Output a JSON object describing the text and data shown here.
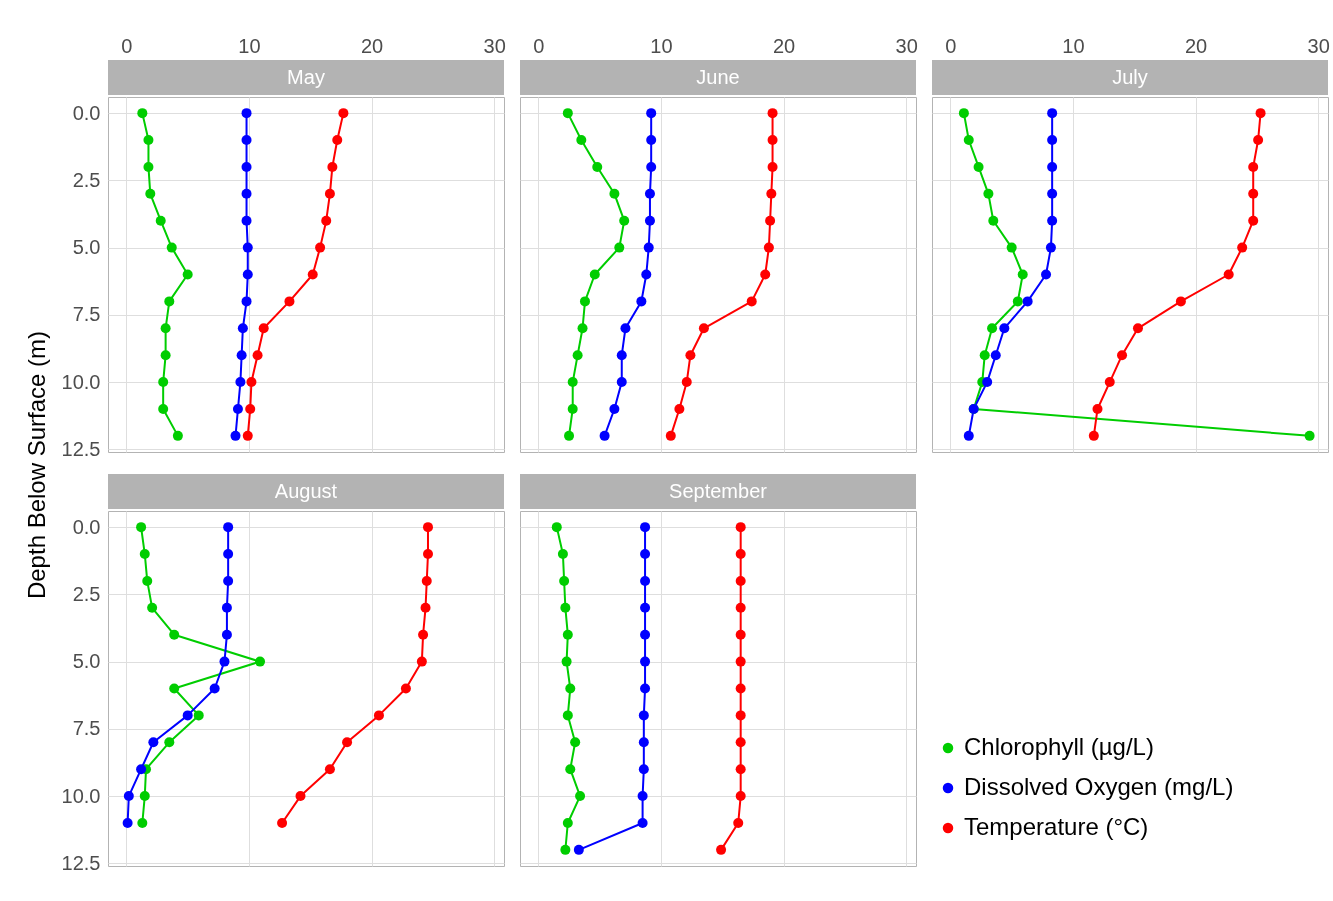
{
  "chart_data": [
    {
      "type": "line",
      "title": "May",
      "ylabel": "Depth Below Surface (m)",
      "xlim": [
        -1.5,
        30.8
      ],
      "ylim": [
        12.6,
        -0.6
      ],
      "xticks": [
        0,
        10,
        20,
        30
      ],
      "yticks": [
        {
          "value": 0,
          "label": "0.0"
        },
        {
          "value": 2.5,
          "label": "2.5"
        },
        {
          "value": 5,
          "label": "5.0"
        },
        {
          "value": 7.5,
          "label": "7.5"
        },
        {
          "value": 10,
          "label": "10.0"
        },
        {
          "value": 12.5,
          "label": "12.5"
        }
      ],
      "grid": true,
      "marker": "circle",
      "line_style": "solid",
      "series": [
        {
          "color": "#00cd00",
          "x": [
            1.3,
            1.8,
            1.8,
            1.95,
            2.8,
            3.7,
            5.0,
            3.5,
            3.2,
            3.2,
            3.0,
            3.0,
            4.2
          ],
          "values": [
            0,
            1,
            2,
            3,
            4,
            5,
            6,
            7,
            8,
            9,
            10,
            11,
            12
          ]
        },
        {
          "color": "#0000ff",
          "x": [
            9.8,
            9.8,
            9.8,
            9.8,
            9.8,
            9.9,
            9.9,
            9.8,
            9.5,
            9.4,
            9.3,
            9.1,
            8.9
          ],
          "values": [
            0,
            1,
            2,
            3,
            4,
            5,
            6,
            7,
            8,
            9,
            10,
            11,
            12
          ]
        },
        {
          "color": "#ff0000",
          "x": [
            17.7,
            17.2,
            16.8,
            16.6,
            16.3,
            15.8,
            15.2,
            13.3,
            11.2,
            10.7,
            10.2,
            10.1,
            9.9
          ],
          "values": [
            0,
            1,
            2,
            3,
            4,
            5,
            6,
            7,
            8,
            9,
            10,
            11,
            12
          ]
        }
      ]
    },
    {
      "type": "line",
      "title": "June",
      "tick_labels": "x",
      "xlim": [
        -1.5,
        30.8
      ],
      "ylim": [
        12.6,
        -0.6
      ],
      "xticks": [
        0,
        10,
        20,
        30
      ],
      "yticks": [
        0,
        2.5,
        5,
        7.5,
        10,
        12.5
      ],
      "grid": true,
      "marker": "circle",
      "line_style": "solid",
      "series": [
        {
          "color": "#00cd00",
          "x": [
            2.4,
            3.5,
            4.8,
            6.2,
            7.0,
            6.6,
            4.6,
            3.8,
            3.6,
            3.2,
            2.8,
            2.8,
            2.5
          ],
          "values": [
            0,
            1,
            2,
            3,
            4,
            5,
            6,
            7,
            8,
            9,
            10,
            11,
            12
          ]
        },
        {
          "color": "#0000ff",
          "x": [
            9.2,
            9.2,
            9.2,
            9.1,
            9.1,
            9.0,
            8.8,
            8.4,
            7.1,
            6.8,
            6.8,
            6.2,
            5.4
          ],
          "values": [
            0,
            1,
            2,
            3,
            4,
            5,
            6,
            7,
            8,
            9,
            10,
            11,
            12
          ]
        },
        {
          "color": "#ff0000",
          "x": [
            19.1,
            19.1,
            19.1,
            19.0,
            18.9,
            18.8,
            18.5,
            17.4,
            13.5,
            12.4,
            12.1,
            11.5,
            10.8
          ],
          "values": [
            0,
            1,
            2,
            3,
            4,
            5,
            6,
            7,
            8,
            9,
            10,
            11,
            12
          ]
        }
      ]
    },
    {
      "type": "line",
      "title": "July",
      "tick_labels": "x",
      "xlim": [
        -1.5,
        30.8
      ],
      "ylim": [
        12.6,
        -0.6
      ],
      "xticks": [
        0,
        10,
        20,
        30
      ],
      "yticks": [
        0,
        2.5,
        5,
        7.5,
        10,
        12.5
      ],
      "grid": true,
      "marker": "circle",
      "line_style": "solid",
      "series": [
        {
          "color": "#00cd00",
          "x": [
            1.1,
            1.5,
            2.3,
            3.1,
            3.5,
            5.0,
            5.9,
            5.5,
            3.4,
            2.8,
            2.6,
            1.9,
            29.3
          ],
          "values": [
            0,
            1,
            2,
            3,
            4,
            5,
            6,
            7,
            8,
            9,
            10,
            11,
            12
          ]
        },
        {
          "color": "#0000ff",
          "x": [
            8.3,
            8.3,
            8.3,
            8.3,
            8.3,
            8.2,
            7.8,
            6.3,
            4.4,
            3.7,
            3.0,
            1.9,
            1.5
          ],
          "values": [
            0,
            1,
            2,
            3,
            4,
            5,
            6,
            7,
            8,
            9,
            10,
            11,
            12
          ]
        },
        {
          "color": "#ff0000",
          "x": [
            25.3,
            25.1,
            24.7,
            24.7,
            24.7,
            23.8,
            22.7,
            18.8,
            15.3,
            14.0,
            13.0,
            12.0,
            11.7
          ],
          "values": [
            0,
            1,
            2,
            3,
            4,
            5,
            6,
            7,
            8,
            9,
            10,
            11,
            12
          ]
        }
      ]
    },
    {
      "type": "line",
      "title": "August",
      "tick_labels": "y",
      "xlim": [
        -1.5,
        30.8
      ],
      "ylim": [
        12.6,
        -0.6
      ],
      "xticks": [
        0,
        10,
        20,
        30
      ],
      "yticks": [
        {
          "value": 0,
          "label": "0.0"
        },
        {
          "value": 2.5,
          "label": "2.5"
        },
        {
          "value": 5,
          "label": "5.0"
        },
        {
          "value": 7.5,
          "label": "7.5"
        },
        {
          "value": 10,
          "label": "10.0"
        },
        {
          "value": 12.5,
          "label": "12.5"
        }
      ],
      "grid": true,
      "marker": "circle",
      "line_style": "solid",
      "series": [
        {
          "color": "#00cd00",
          "x": [
            1.2,
            1.5,
            1.7,
            2.1,
            3.9,
            10.9,
            3.9,
            5.9,
            3.5,
            1.6,
            1.5,
            1.3
          ],
          "values": [
            0,
            1,
            2,
            3,
            4,
            5,
            6,
            7,
            8,
            9,
            10,
            11
          ]
        },
        {
          "color": "#0000ff",
          "x": [
            8.3,
            8.3,
            8.3,
            8.2,
            8.2,
            8.0,
            7.2,
            5.0,
            2.2,
            1.2,
            0.2,
            0.1
          ],
          "values": [
            0,
            1,
            2,
            3,
            4,
            5,
            6,
            7,
            8,
            9,
            10,
            11
          ]
        },
        {
          "color": "#ff0000",
          "x": [
            24.6,
            24.6,
            24.5,
            24.4,
            24.2,
            24.1,
            22.8,
            20.6,
            18.0,
            16.6,
            14.2,
            12.7
          ],
          "values": [
            0,
            1,
            2,
            3,
            4,
            5,
            6,
            7,
            8,
            9,
            10,
            11
          ]
        }
      ]
    },
    {
      "type": "line",
      "title": "September",
      "tick_labels": false,
      "legend": "bottom right",
      "xlim": [
        -1.5,
        30.8
      ],
      "ylim": [
        12.6,
        -0.6
      ],
      "xticks": [
        0,
        10,
        20,
        30
      ],
      "yticks": [
        0,
        2.5,
        5,
        7.5,
        10,
        12.5
      ],
      "grid": true,
      "marker": "circle",
      "line_style": "solid",
      "series": [
        {
          "name": "Chlorophyll (µg/L)",
          "color": "#00cd00",
          "x": [
            1.5,
            2.0,
            2.1,
            2.2,
            2.4,
            2.3,
            2.6,
            2.4,
            3.0,
            2.6,
            3.4,
            2.4,
            2.2
          ],
          "values": [
            0,
            1,
            2,
            3,
            4,
            5,
            6,
            7,
            8,
            9,
            10,
            11,
            12
          ]
        },
        {
          "name": "Dissolved Oxygen (mg/L)",
          "color": "#0000ff",
          "x": [
            8.7,
            8.7,
            8.7,
            8.7,
            8.7,
            8.7,
            8.7,
            8.6,
            8.6,
            8.6,
            8.5,
            8.5,
            3.3
          ],
          "values": [
            0,
            1,
            2,
            3,
            4,
            5,
            6,
            7,
            8,
            9,
            10,
            11,
            12
          ]
        },
        {
          "name": "Temperature (°C)",
          "color": "#ff0000",
          "x": [
            16.5,
            16.5,
            16.5,
            16.5,
            16.5,
            16.5,
            16.5,
            16.5,
            16.5,
            16.5,
            16.5,
            16.3,
            14.9
          ],
          "values": [
            0,
            1,
            2,
            3,
            4,
            5,
            6,
            7,
            8,
            9,
            10,
            11,
            12
          ]
        }
      ]
    }
  ]
}
